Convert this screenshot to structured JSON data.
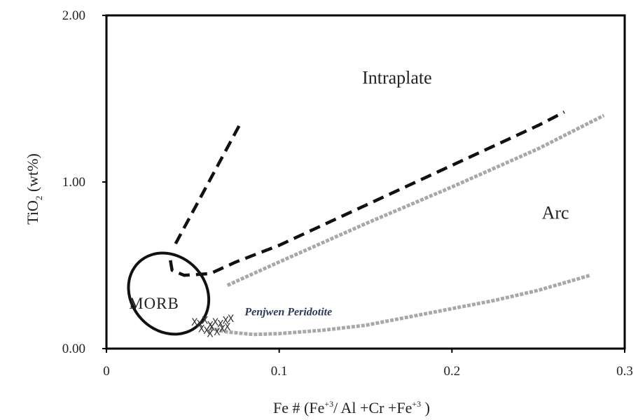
{
  "chart_data": {
    "type": "scatter",
    "xlabel": "Fe # (Fe+3/ Al +Cr +Fe+3 )",
    "xlabel_parts": {
      "prefix": "Fe # (Fe",
      "sup1": "+3",
      "middle": "/ Al +Cr +Fe",
      "sup2": "+3",
      "suffix": " )"
    },
    "ylabel": "TiO2 (wt%)",
    "ylabel_parts": {
      "prefix": "TiO",
      "sub": "2",
      "suffix": " (wt%)"
    },
    "xlim": [
      0,
      0.3
    ],
    "ylim": [
      0,
      2.0
    ],
    "x_ticks": [
      "0",
      "0.1",
      "0.2",
      "0.3"
    ],
    "x_tick_values": [
      0,
      0.1,
      0.2,
      0.3
    ],
    "y_ticks": [
      "0.00",
      "1.00",
      "2.00"
    ],
    "y_tick_values": [
      0,
      1.0,
      2.0
    ],
    "grid": false,
    "regions": [
      {
        "label": "Intraplate",
        "x": 0.148,
        "y": 1.59
      },
      {
        "label": "Arc",
        "x": 0.252,
        "y": 0.78
      }
    ],
    "morb_field": {
      "label": "MORB",
      "label_x": 0.013,
      "label_y": 0.24,
      "cx": 0.036,
      "cy": 0.33,
      "rx": 0.036,
      "ry": 0.36,
      "tilt_deg": 43
    },
    "boundary_lines": [
      {
        "style": "dashed",
        "points": [
          [
            0.04,
            0.63
          ],
          [
            0.078,
            1.36
          ]
        ]
      },
      {
        "style": "dashed",
        "points": [
          [
            0.037,
            0.53
          ],
          [
            0.038,
            0.47
          ],
          [
            0.045,
            0.44
          ],
          [
            0.06,
            0.45
          ],
          [
            0.075,
            0.52
          ],
          [
            0.1,
            0.62
          ],
          [
            0.15,
            0.86
          ],
          [
            0.2,
            1.1
          ],
          [
            0.25,
            1.34
          ],
          [
            0.265,
            1.42
          ]
        ]
      },
      {
        "style": "dotted-gray",
        "points": [
          [
            0.07,
            0.38
          ],
          [
            0.1,
            0.52
          ],
          [
            0.15,
            0.75
          ],
          [
            0.2,
            0.97
          ],
          [
            0.25,
            1.2
          ],
          [
            0.288,
            1.4
          ]
        ]
      },
      {
        "style": "dotted-gray",
        "points": [
          [
            0.06,
            0.12
          ],
          [
            0.07,
            0.1
          ],
          [
            0.085,
            0.085
          ],
          [
            0.1,
            0.09
          ],
          [
            0.125,
            0.11
          ],
          [
            0.15,
            0.14
          ],
          [
            0.175,
            0.19
          ],
          [
            0.2,
            0.24
          ],
          [
            0.225,
            0.29
          ],
          [
            0.25,
            0.35
          ],
          [
            0.28,
            0.44
          ]
        ]
      }
    ],
    "series": [
      {
        "name": "Penjwen Peridotite",
        "marker": "x",
        "label_x": 0.08,
        "label_y": 0.2,
        "points": [
          [
            0.051,
            0.16
          ],
          [
            0.054,
            0.15
          ],
          [
            0.057,
            0.17
          ],
          [
            0.06,
            0.14
          ],
          [
            0.063,
            0.16
          ],
          [
            0.066,
            0.15
          ],
          [
            0.069,
            0.17
          ],
          [
            0.072,
            0.18
          ],
          [
            0.055,
            0.12
          ],
          [
            0.058,
            0.11
          ],
          [
            0.061,
            0.13
          ],
          [
            0.064,
            0.1
          ],
          [
            0.067,
            0.12
          ],
          [
            0.07,
            0.13
          ],
          [
            0.06,
            0.09
          ]
        ]
      }
    ]
  }
}
